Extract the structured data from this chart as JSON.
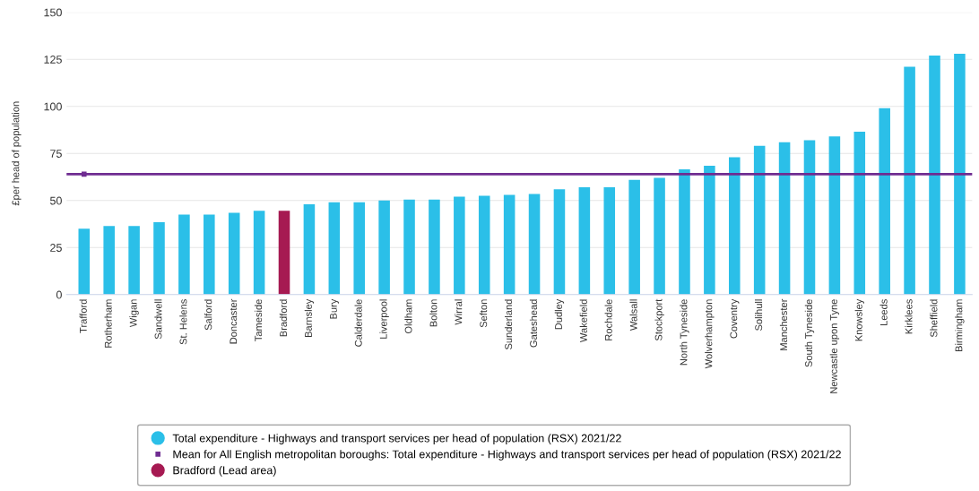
{
  "chart_data": {
    "type": "bar",
    "ylabel": "£per head of population",
    "categories": [
      "Trafford",
      "Rotherham",
      "Wigan",
      "Sandwell",
      "St. Helens",
      "Salford",
      "Doncaster",
      "Tameside",
      "Bradford",
      "Barnsley",
      "Bury",
      "Calderdale",
      "Liverpool",
      "Oldham",
      "Bolton",
      "Wirral",
      "Sefton",
      "Sunderland",
      "Gateshead",
      "Dudley",
      "Wakefield",
      "Rochdale",
      "Walsall",
      "Stockport",
      "North Tyneside",
      "Wolverhampton",
      "Coventry",
      "Solihull",
      "Manchester",
      "South Tyneside",
      "Newcastle upon Tyne",
      "Knowsley",
      "Leeds",
      "Kirklees",
      "Sheffield",
      "Birmingham"
    ],
    "series": [
      {
        "name": "Total expenditure - Highways and transport services per head of population (RSX) 2021/22",
        "color": "#2bbfe8",
        "values": [
          35,
          36.5,
          36.5,
          38.5,
          42.5,
          42.5,
          43.5,
          44.5,
          null,
          48,
          49,
          49,
          50,
          50.5,
          50.5,
          52,
          52.5,
          53,
          53.5,
          56,
          57,
          57,
          61,
          62,
          66.5,
          68.5,
          73,
          79,
          81,
          82,
          84,
          86.5,
          99,
          121,
          127,
          128
        ]
      },
      {
        "name": "Bradford (Lead area)",
        "color": "#a61a52",
        "values": [
          null,
          null,
          null,
          null,
          null,
          null,
          null,
          null,
          44.5,
          null,
          null,
          null,
          null,
          null,
          null,
          null,
          null,
          null,
          null,
          null,
          null,
          null,
          null,
          null,
          null,
          null,
          null,
          null,
          null,
          null,
          null,
          null,
          null,
          null,
          null,
          null
        ]
      }
    ],
    "ref_lines": [
      {
        "axis": "y",
        "value": 64,
        "label": "Mean for All English metropolitan boroughs: Total expenditure - Highways and transport services per head of population (RSX) 2021/22",
        "color": "#6f2c91"
      }
    ],
    "ylim": [
      0,
      150
    ],
    "yticks": [
      0,
      25,
      50,
      75,
      100,
      125,
      150
    ],
    "grid": "y",
    "legend": "bottom"
  }
}
